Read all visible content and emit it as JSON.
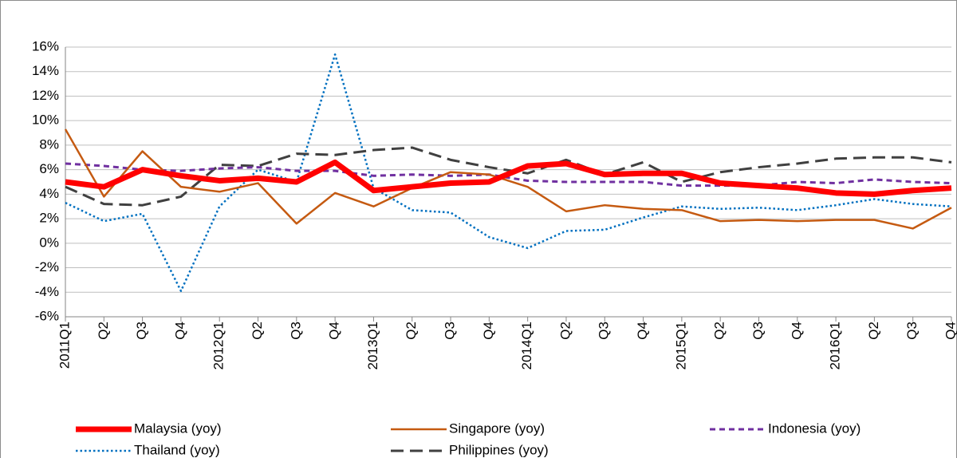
{
  "chart_data": {
    "type": "line",
    "categories": [
      "2011Q1",
      "Q2",
      "Q3",
      "Q4",
      "2012Q1",
      "Q2",
      "Q3",
      "Q4",
      "2013Q1",
      "Q2",
      "Q3",
      "Q4",
      "2014Q1",
      "Q2",
      "Q3",
      "Q4",
      "2015Q1",
      "Q2",
      "Q3",
      "Q4",
      "2016Q1",
      "Q2",
      "Q3",
      "Q4"
    ],
    "series": [
      {
        "name": "Malaysia (yoy)",
        "color": "#ff0000",
        "style": "thick",
        "values": [
          5.0,
          4.6,
          6.0,
          5.5,
          5.1,
          5.3,
          5.0,
          6.6,
          4.3,
          4.6,
          4.9,
          5.0,
          6.3,
          6.5,
          5.6,
          5.7,
          5.7,
          4.9,
          4.7,
          4.5,
          4.1,
          4.0,
          4.3,
          4.5
        ]
      },
      {
        "name": "Singapore (yoy)",
        "color": "#c55a11",
        "style": "solid",
        "values": [
          9.3,
          3.8,
          7.5,
          4.6,
          4.2,
          4.9,
          1.6,
          4.1,
          3.0,
          4.5,
          5.8,
          5.6,
          4.6,
          2.6,
          3.1,
          2.8,
          2.7,
          1.8,
          1.9,
          1.8,
          1.9,
          1.9,
          1.2,
          2.9
        ]
      },
      {
        "name": "Indonesia (yoy)",
        "color": "#7030a0",
        "style": "dashed",
        "values": [
          6.5,
          6.3,
          6.0,
          5.9,
          6.1,
          6.2,
          5.9,
          5.9,
          5.5,
          5.6,
          5.5,
          5.6,
          5.1,
          5.0,
          5.0,
          5.0,
          4.7,
          4.7,
          4.7,
          5.0,
          4.9,
          5.2,
          5.0,
          4.9
        ]
      },
      {
        "name": "Thailand (yoy)",
        "color": "#0070c0",
        "style": "dotted",
        "values": [
          3.3,
          1.8,
          2.4,
          -3.9,
          3.0,
          6.0,
          5.0,
          15.4,
          4.5,
          2.7,
          2.5,
          0.5,
          -0.4,
          1.0,
          1.1,
          2.1,
          3.0,
          2.8,
          2.9,
          2.7,
          3.1,
          3.6,
          3.2,
          3.0
        ]
      },
      {
        "name": "Philippines (yoy)",
        "color": "#404040",
        "style": "long-dash",
        "values": [
          4.6,
          3.2,
          3.1,
          3.8,
          6.4,
          6.3,
          7.3,
          7.2,
          7.6,
          7.8,
          6.8,
          6.2,
          5.7,
          6.8,
          5.6,
          6.6,
          5.0,
          5.8,
          6.2,
          6.5,
          6.9,
          7.0,
          7.0,
          6.6
        ]
      }
    ],
    "ylim": [
      -6,
      16
    ],
    "yticks": [
      {
        "value": -6,
        "label": "-6%"
      },
      {
        "value": -4,
        "label": "-4%"
      },
      {
        "value": -2,
        "label": "-2%"
      },
      {
        "value": 0,
        "label": "0%"
      },
      {
        "value": 2,
        "label": "2%"
      },
      {
        "value": 4,
        "label": "4%"
      },
      {
        "value": 6,
        "label": "6%"
      },
      {
        "value": 8,
        "label": "8%"
      },
      {
        "value": 10,
        "label": "10%"
      },
      {
        "value": 12,
        "label": "12%"
      },
      {
        "value": 14,
        "label": "14%"
      },
      {
        "value": 16,
        "label": "16%"
      }
    ],
    "grid": true,
    "legend": "bottom"
  }
}
